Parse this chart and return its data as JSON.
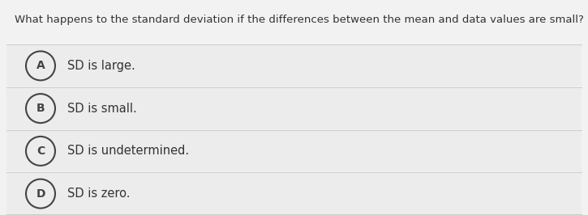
{
  "question": "What happens to the standard deviation if the differences between the mean and data values are small?",
  "options": [
    {
      "label": "A",
      "text": "SD is large."
    },
    {
      "label": "B",
      "text": "SD is small."
    },
    {
      "label": "C",
      "text": "SD is undetermined."
    },
    {
      "label": "D",
      "text": "SD is zero."
    }
  ],
  "bg_color": "#f2f2f2",
  "option_bg": "#ececec",
  "option_border": "#cccccc",
  "text_color": "#333333",
  "circle_edge_color": "#444444",
  "question_fontsize": 9.5,
  "option_fontsize": 10.5,
  "label_fontsize": 10,
  "fig_width": 7.25,
  "fig_height": 2.66,
  "dpi": 100
}
